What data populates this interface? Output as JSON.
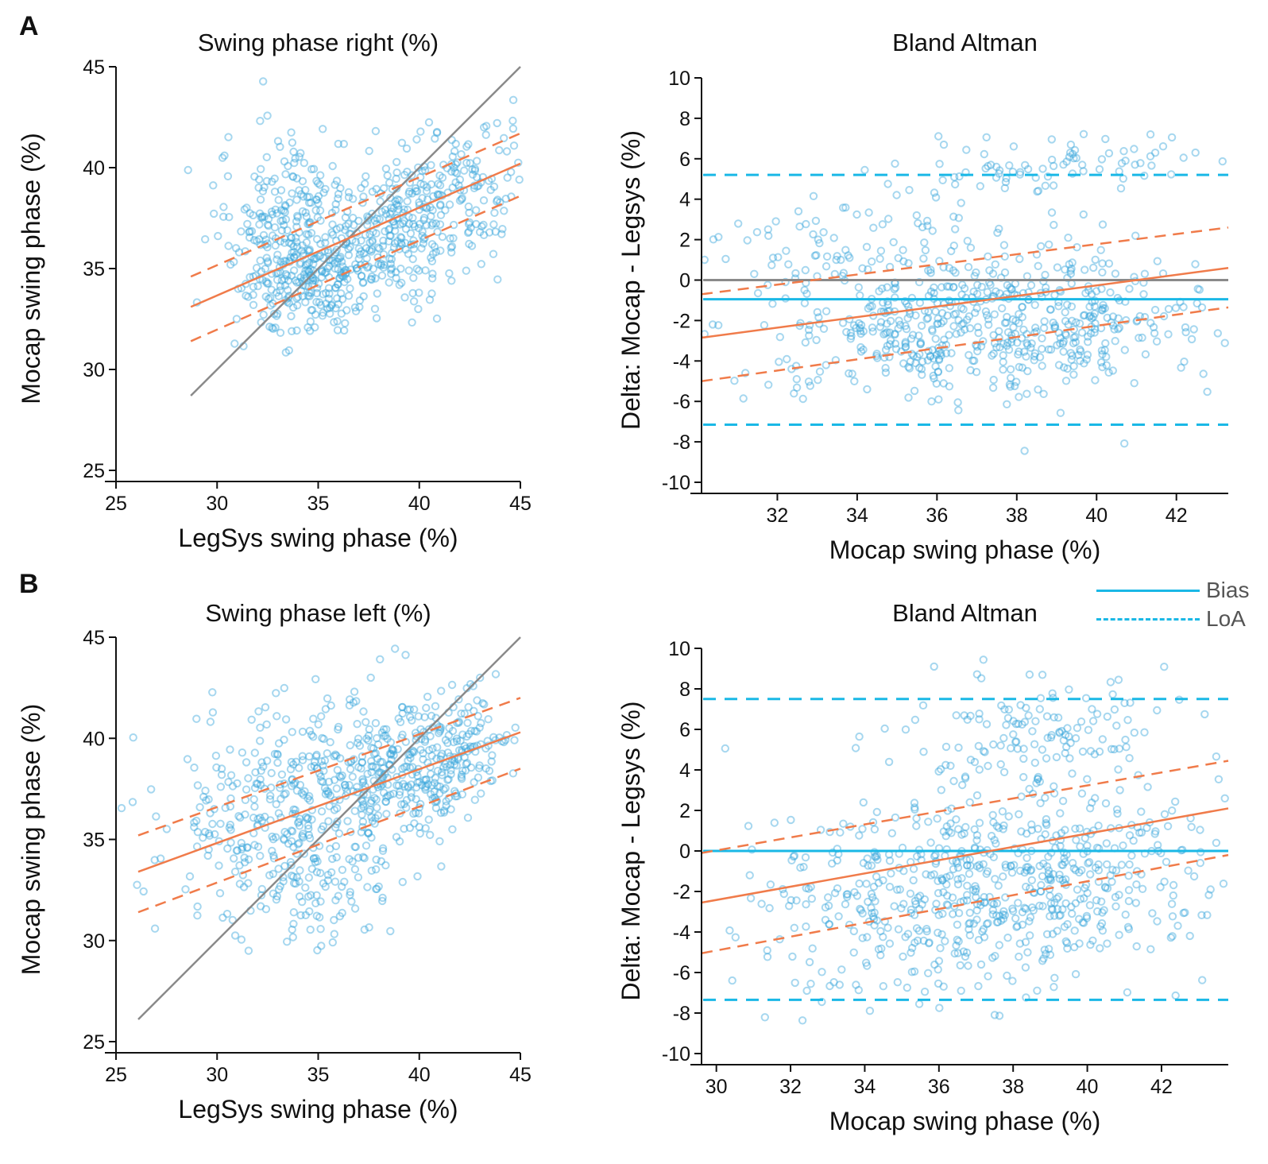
{
  "figure": {
    "panel_labels": [
      "A",
      "B"
    ],
    "legend": [
      {
        "label": "Bias",
        "style": "solid",
        "color": "#1ab8e6"
      },
      {
        "label": "LoA",
        "style": "dashed",
        "color": "#1ab8e6"
      }
    ],
    "colors": {
      "points": "#3aa7dc",
      "regression": "#f07b4a",
      "identity": "#8a8a8a",
      "bias": "#1ab8e6"
    }
  },
  "chart_data": [
    {
      "type": "scatter",
      "title": "Swing phase right (%)",
      "xlabel": "LegSys swing phase (%)",
      "ylabel": "Mocap swing phase (%)",
      "xlim": [
        25,
        45
      ],
      "ylim": [
        25,
        45
      ],
      "xticks": [
        25,
        30,
        35,
        40,
        45
      ],
      "yticks": [
        25,
        30,
        35,
        40,
        45
      ],
      "identity_line": {
        "x": [
          28.7,
          45
        ],
        "y": [
          28.7,
          45
        ]
      },
      "regression": {
        "x": [
          28.7,
          45
        ],
        "y": [
          33.1,
          40.2
        ]
      },
      "ci_upper": {
        "x": [
          28.7,
          45
        ],
        "y": [
          34.6,
          41.7
        ]
      },
      "ci_lower": {
        "x": [
          28.7,
          45
        ],
        "y": [
          31.4,
          38.6
        ]
      },
      "point_cloud": [
        {
          "cx": 39.5,
          "cy": 37.3,
          "sx": 3.0,
          "sy": 2.2,
          "r": 0.6,
          "n": 440
        },
        {
          "cx": 33.2,
          "cy": 37.2,
          "sx": 1.6,
          "sy": 2.6,
          "r": 0.1,
          "n": 230
        },
        {
          "cx": 35.0,
          "cy": 34.0,
          "sx": 1.5,
          "sy": 1.4,
          "r": 0.3,
          "n": 120
        }
      ],
      "n_points": 790
    },
    {
      "type": "scatter",
      "title": "Bland Altman",
      "xlabel": "Mocap swing phase (%)",
      "ylabel": "Delta: Mocap - Legsys (%)",
      "xlim": [
        30.1,
        43.3
      ],
      "ylim": [
        -10,
        10
      ],
      "xticks": [
        32,
        34,
        36,
        38,
        40,
        42
      ],
      "yticks": [
        -10,
        -8,
        -6,
        -4,
        -2,
        0,
        2,
        4,
        6,
        8,
        10
      ],
      "zero_line": 0,
      "bias": -0.95,
      "loa_upper": 5.2,
      "loa_lower": -7.15,
      "regression": {
        "x": [
          30.1,
          43.3
        ],
        "y": [
          -2.85,
          0.6
        ]
      },
      "ci_upper": {
        "x": [
          30.1,
          43.3
        ],
        "y": [
          -0.7,
          2.6
        ]
      },
      "ci_lower": {
        "x": [
          30.1,
          43.3
        ],
        "y": [
          -5.0,
          -1.35
        ]
      },
      "point_cloud": [
        {
          "cx": 37.2,
          "cy": -2.3,
          "sx": 2.8,
          "sy": 1.7,
          "r": 0.1,
          "n": 560
        },
        {
          "cx": 39.0,
          "cy": 5.6,
          "sx": 2.0,
          "sy": 0.7,
          "r": 0.2,
          "n": 80
        },
        {
          "cx": 34.5,
          "cy": 1.8,
          "sx": 2.5,
          "sy": 1.3,
          "r": 0.0,
          "n": 110
        }
      ],
      "n_points": 750
    },
    {
      "type": "scatter",
      "title": "Swing phase left (%)",
      "xlabel": "LegSys swing phase (%)",
      "ylabel": "Mocap swing phase (%)",
      "xlim": [
        25,
        45
      ],
      "ylim": [
        25,
        45
      ],
      "xticks": [
        25,
        30,
        35,
        40,
        45
      ],
      "yticks": [
        25,
        30,
        35,
        40,
        45
      ],
      "identity_line": {
        "x": [
          26.1,
          45
        ],
        "y": [
          26.1,
          45
        ]
      },
      "regression": {
        "x": [
          26.1,
          45
        ],
        "y": [
          33.4,
          40.3
        ]
      },
      "ci_upper": {
        "x": [
          26.1,
          45
        ],
        "y": [
          35.2,
          42.0
        ]
      },
      "ci_lower": {
        "x": [
          26.1,
          45
        ],
        "y": [
          31.4,
          38.5
        ]
      },
      "point_cloud": [
        {
          "cx": 40.5,
          "cy": 38.8,
          "sx": 2.2,
          "sy": 1.8,
          "r": 0.4,
          "n": 330
        },
        {
          "cx": 33.5,
          "cy": 37.0,
          "sx": 3.0,
          "sy": 2.6,
          "r": 0.3,
          "n": 360
        },
        {
          "cx": 35.0,
          "cy": 32.5,
          "sx": 1.8,
          "sy": 1.5,
          "r": 0.2,
          "n": 90
        }
      ],
      "n_points": 780
    },
    {
      "type": "scatter",
      "title": "Bland Altman",
      "xlabel": "Mocap swing phase (%)",
      "ylabel": "Delta: Mocap - Legsys (%)",
      "xlim": [
        29.6,
        43.8
      ],
      "ylim": [
        -10,
        10
      ],
      "xticks": [
        30,
        32,
        34,
        36,
        38,
        40,
        42
      ],
      "yticks": [
        -10,
        -8,
        -6,
        -4,
        -2,
        0,
        2,
        4,
        6,
        8,
        10
      ],
      "zero_line": 0,
      "bias": 0.0,
      "loa_upper": 7.5,
      "loa_lower": -7.35,
      "regression": {
        "x": [
          29.6,
          43.8
        ],
        "y": [
          -2.55,
          2.1
        ]
      },
      "ci_upper": {
        "x": [
          29.6,
          43.8
        ],
        "y": [
          -0.1,
          4.45
        ]
      },
      "ci_lower": {
        "x": [
          29.6,
          43.8
        ],
        "y": [
          -5.05,
          -0.2
        ]
      },
      "point_cloud": [
        {
          "cx": 38.0,
          "cy": -1.5,
          "sx": 3.0,
          "sy": 2.6,
          "r": 0.15,
          "n": 600
        },
        {
          "cx": 38.5,
          "cy": 6.0,
          "sx": 2.6,
          "sy": 1.4,
          "r": 0.1,
          "n": 130
        },
        {
          "cx": 33.5,
          "cy": -3.0,
          "sx": 2.5,
          "sy": 2.8,
          "r": 0.0,
          "n": 90
        }
      ],
      "n_points": 820
    }
  ]
}
